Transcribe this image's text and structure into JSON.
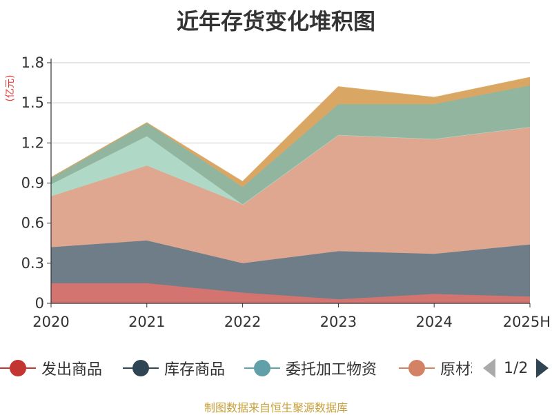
{
  "title": "近年存货变化堆积图",
  "unit": "(亿元)",
  "source": "制图数据来自恒生聚源数据库",
  "legend": {
    "items": [
      {
        "label": "发出商品",
        "color": "#c23531"
      },
      {
        "label": "库存商品",
        "color": "#2f4554"
      },
      {
        "label": "委托加工物资",
        "color": "#61a0a8"
      },
      {
        "label": "原材料",
        "color": "#d48265"
      }
    ],
    "page": "1/2"
  },
  "chart_data": {
    "type": "area",
    "stacked": true,
    "categories": [
      "2020",
      "2021",
      "2022",
      "2023",
      "2024",
      "2025H"
    ],
    "ylim": [
      0,
      1.8
    ],
    "yticks": [
      "0",
      "0.3",
      "0.6",
      "0.9",
      "1.2",
      "1.5",
      "1.8"
    ],
    "grid": true,
    "legend_position": "bottom",
    "series": [
      {
        "name": "发出商品",
        "color": "#d47470",
        "values": [
          0.15,
          0.15,
          0.08,
          0.03,
          0.07,
          0.05
        ]
      },
      {
        "name": "库存商品",
        "color": "#6e7d88",
        "values": [
          0.27,
          0.32,
          0.22,
          0.36,
          0.3,
          0.39
        ]
      },
      {
        "name": "原材料",
        "color": "#dfa690",
        "values": [
          0.38,
          0.56,
          0.44,
          0.87,
          0.86,
          0.88
        ]
      },
      {
        "name": "委托加工物资",
        "color": "#b0d8c6",
        "values": [
          0.09,
          0.22,
          0.0,
          0.0,
          0.0,
          0.0
        ]
      },
      {
        "name": "",
        "color": "#92b5a0",
        "values": [
          0.05,
          0.1,
          0.13,
          0.23,
          0.26,
          0.31
        ]
      },
      {
        "name": "",
        "color": "#d9a763",
        "values": [
          0.0,
          0.0,
          0.04,
          0.13,
          0.05,
          0.06
        ]
      }
    ]
  }
}
